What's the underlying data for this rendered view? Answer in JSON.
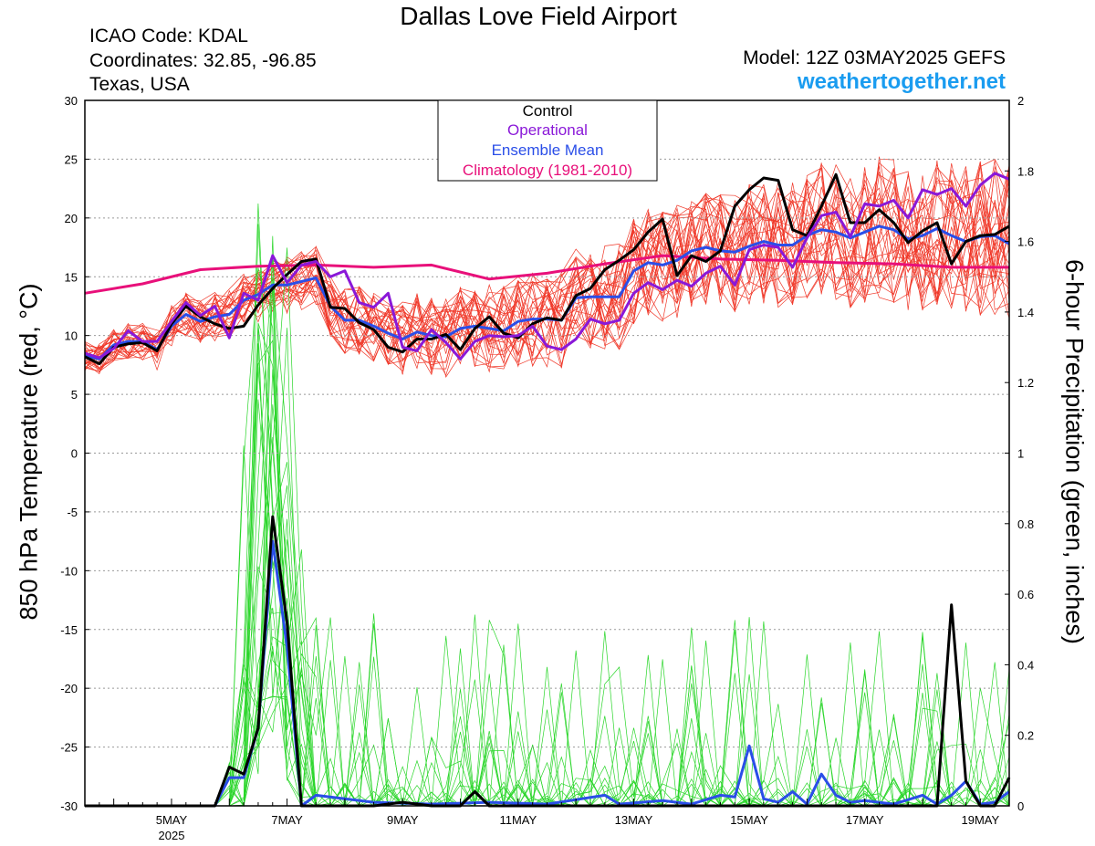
{
  "page": {
    "title": "Dallas Love Field Airport",
    "icao": "ICAO Code: KDAL",
    "coordinates": "Coordinates: 32.85, -96.85",
    "region": "Texas, USA",
    "model": "Model: 12Z 03MAY2025 GEFS",
    "brand": "weathertogether.net"
  },
  "chart_data": {
    "type": "line",
    "title": "Dallas Love Field Airport",
    "ylabel": "850 hPa Temperature (red, °C)",
    "y2label": "6-hour Precipitation (green, inches)",
    "ylim": [
      -30,
      30
    ],
    "y2lim": [
      0,
      2
    ],
    "yticks": [
      30,
      25,
      20,
      15,
      10,
      5,
      0,
      -5,
      -10,
      -15,
      -20,
      -25,
      -30
    ],
    "y2ticks": [
      "2",
      "1.8",
      "1.6",
      "1.4",
      "1.2",
      "1",
      "0.8",
      "0.6",
      "0.4",
      "0.2",
      "0"
    ],
    "x_unit": "days since 12Z 03MAY2025",
    "xlim": [
      0,
      16
    ],
    "xticks": [
      {
        "label": "5MAY",
        "sublabel": "2025",
        "x": 1.5
      },
      {
        "label": "7MAY",
        "sublabel": "",
        "x": 3.5
      },
      {
        "label": "9MAY",
        "sublabel": "",
        "x": 5.5
      },
      {
        "label": "11MAY",
        "sublabel": "",
        "x": 7.5
      },
      {
        "label": "13MAY",
        "sublabel": "",
        "x": 9.5
      },
      {
        "label": "15MAY",
        "sublabel": "",
        "x": 11.5
      },
      {
        "label": "17MAY",
        "sublabel": "",
        "x": 13.5
      },
      {
        "label": "19MAY",
        "sublabel": "",
        "x": 15.5
      }
    ],
    "grid": true,
    "legend": {
      "position": "top-center",
      "entries": [
        {
          "label": "Control",
          "color": "#000000"
        },
        {
          "label": "Operational",
          "color": "#8a18d8"
        },
        {
          "label": "Ensemble Mean",
          "color": "#2a4ee8"
        },
        {
          "label": "Climatology (1981-2010)",
          "color": "#e8107a"
        }
      ]
    },
    "colors": {
      "members_temp": "#f0392a",
      "members_precip": "#2ad62a",
      "control": "#000000",
      "operational": "#8a18d8",
      "mean": "#2a4ee8",
      "climatology": "#e8107a"
    },
    "series": [
      {
        "name": "Climatology (1981-2010)",
        "axis": "left",
        "points": [
          [
            0,
            13.6
          ],
          [
            1,
            14.4
          ],
          [
            2,
            15.6
          ],
          [
            3,
            15.9
          ],
          [
            4,
            16.0
          ],
          [
            5,
            15.8
          ],
          [
            6,
            16.0
          ],
          [
            7,
            14.8
          ],
          [
            8,
            15.3
          ],
          [
            9,
            16.1
          ],
          [
            10,
            16.8
          ],
          [
            11,
            16.5
          ],
          [
            12,
            16.4
          ],
          [
            13,
            16.2
          ],
          [
            14,
            16.1
          ],
          [
            15,
            15.8
          ],
          [
            16,
            15.8
          ]
        ]
      },
      {
        "name": "Ensemble Mean",
        "axis": "left",
        "points": [
          [
            0,
            8.3
          ],
          [
            0.25,
            8.0
          ],
          [
            0.5,
            9.2
          ],
          [
            0.75,
            9.5
          ],
          [
            1,
            9.5
          ],
          [
            1.25,
            8.8
          ],
          [
            1.5,
            10.8
          ],
          [
            1.75,
            11.8
          ],
          [
            2,
            11.2
          ],
          [
            2.25,
            11.6
          ],
          [
            2.5,
            11.8
          ],
          [
            2.75,
            13.0
          ],
          [
            3,
            13.5
          ],
          [
            3.25,
            14.3
          ],
          [
            3.5,
            14.3
          ],
          [
            3.75,
            14.6
          ],
          [
            4,
            14.9
          ],
          [
            4.25,
            12.5
          ],
          [
            4.5,
            11.3
          ],
          [
            4.75,
            11.3
          ],
          [
            5,
            10.8
          ],
          [
            5.25,
            10.2
          ],
          [
            5.5,
            9.7
          ],
          [
            5.75,
            10.3
          ],
          [
            6,
            10.0
          ],
          [
            6.25,
            9.9
          ],
          [
            6.5,
            10.6
          ],
          [
            6.75,
            10.8
          ],
          [
            7,
            10.6
          ],
          [
            7.25,
            10.4
          ],
          [
            7.5,
            11.2
          ],
          [
            7.75,
            11.4
          ],
          [
            8,
            11.4
          ],
          [
            8.25,
            11.3
          ],
          [
            8.5,
            13.2
          ],
          [
            8.75,
            13.3
          ],
          [
            9,
            13.3
          ],
          [
            9.25,
            13.3
          ],
          [
            9.5,
            15.5
          ],
          [
            9.75,
            16.2
          ],
          [
            10,
            16.0
          ],
          [
            10.25,
            16.4
          ],
          [
            10.5,
            17.2
          ],
          [
            10.75,
            17.5
          ],
          [
            11,
            17.2
          ],
          [
            11.25,
            17.1
          ],
          [
            11.5,
            17.6
          ],
          [
            11.75,
            18.0
          ],
          [
            12,
            17.7
          ],
          [
            12.25,
            17.7
          ],
          [
            12.5,
            18.5
          ],
          [
            12.75,
            19.0
          ],
          [
            13,
            18.8
          ],
          [
            13.25,
            18.3
          ],
          [
            13.5,
            18.8
          ],
          [
            13.75,
            19.3
          ],
          [
            14,
            19.0
          ],
          [
            14.25,
            18.2
          ],
          [
            14.5,
            18.5
          ],
          [
            14.75,
            19.1
          ],
          [
            15,
            18.5
          ],
          [
            15.25,
            18.0
          ],
          [
            15.5,
            18.4
          ],
          [
            15.75,
            18.5
          ],
          [
            16,
            17.8
          ]
        ]
      },
      {
        "name": "Control",
        "axis": "left",
        "points": [
          [
            0,
            8.2
          ],
          [
            0.25,
            7.6
          ],
          [
            0.5,
            9.0
          ],
          [
            0.75,
            9.3
          ],
          [
            1,
            9.4
          ],
          [
            1.25,
            8.7
          ],
          [
            1.5,
            11.0
          ],
          [
            1.75,
            12.5
          ],
          [
            2,
            11.6
          ],
          [
            2.25,
            11.0
          ],
          [
            2.5,
            10.6
          ],
          [
            2.75,
            10.8
          ],
          [
            3,
            12.6
          ],
          [
            3.25,
            14.0
          ],
          [
            3.5,
            15.2
          ],
          [
            3.75,
            16.3
          ],
          [
            4,
            16.5
          ],
          [
            4.25,
            12.4
          ],
          [
            4.5,
            12.3
          ],
          [
            4.75,
            11.1
          ],
          [
            5,
            10.5
          ],
          [
            5.25,
            9.0
          ],
          [
            5.5,
            8.6
          ],
          [
            5.75,
            9.7
          ],
          [
            6,
            9.7
          ],
          [
            6.25,
            10.1
          ],
          [
            6.5,
            8.8
          ],
          [
            6.75,
            10.6
          ],
          [
            7,
            11.6
          ],
          [
            7.25,
            10.2
          ],
          [
            7.5,
            9.8
          ],
          [
            7.75,
            11.0
          ],
          [
            8,
            11.5
          ],
          [
            8.25,
            11.3
          ],
          [
            8.5,
            13.4
          ],
          [
            8.75,
            14.0
          ],
          [
            9,
            15.6
          ],
          [
            9.25,
            16.4
          ],
          [
            9.5,
            17.3
          ],
          [
            9.75,
            18.8
          ],
          [
            10,
            19.9
          ],
          [
            10.25,
            15.1
          ],
          [
            10.5,
            16.8
          ],
          [
            10.75,
            16.3
          ],
          [
            11,
            17.2
          ],
          [
            11.25,
            21.0
          ],
          [
            11.5,
            22.4
          ],
          [
            11.75,
            23.4
          ],
          [
            12,
            23.2
          ],
          [
            12.25,
            19.0
          ],
          [
            12.5,
            18.5
          ],
          [
            12.75,
            21.0
          ],
          [
            13,
            23.7
          ],
          [
            13.25,
            19.6
          ],
          [
            13.5,
            19.6
          ],
          [
            13.75,
            20.7
          ],
          [
            14,
            19.6
          ],
          [
            14.25,
            17.9
          ],
          [
            14.5,
            18.9
          ],
          [
            14.75,
            19.6
          ],
          [
            15,
            16.1
          ],
          [
            15.25,
            18.0
          ],
          [
            15.5,
            18.5
          ],
          [
            15.75,
            18.6
          ],
          [
            16,
            19.3
          ]
        ]
      },
      {
        "name": "Operational",
        "axis": "left",
        "points": [
          [
            0,
            8.5
          ],
          [
            0.25,
            8.1
          ],
          [
            0.5,
            8.9
          ],
          [
            0.75,
            10.4
          ],
          [
            1,
            9.5
          ],
          [
            1.25,
            9.5
          ],
          [
            1.5,
            11.2
          ],
          [
            1.75,
            12.8
          ],
          [
            2,
            11.7
          ],
          [
            2.25,
            12.5
          ],
          [
            2.5,
            9.8
          ],
          [
            2.75,
            13.6
          ],
          [
            3,
            13.0
          ],
          [
            3.25,
            16.8
          ],
          [
            3.5,
            14.5
          ],
          [
            3.75,
            16.0
          ],
          [
            4,
            16.3
          ],
          [
            4.25,
            15.0
          ],
          [
            4.5,
            15.5
          ],
          [
            4.75,
            12.8
          ],
          [
            5,
            12.4
          ],
          [
            5.25,
            13.6
          ],
          [
            5.5,
            9.0
          ],
          [
            5.75,
            8.7
          ],
          [
            6,
            10.5
          ],
          [
            6.25,
            9.4
          ],
          [
            6.5,
            8.0
          ],
          [
            6.75,
            9.5
          ],
          [
            7,
            10.0
          ],
          [
            7.25,
            9.9
          ],
          [
            7.5,
            10.0
          ],
          [
            7.75,
            10.8
          ],
          [
            8,
            9.1
          ],
          [
            8.25,
            8.8
          ],
          [
            8.5,
            9.7
          ],
          [
            8.75,
            11.4
          ],
          [
            9,
            11.0
          ],
          [
            9.25,
            11.3
          ],
          [
            9.5,
            13.6
          ],
          [
            9.75,
            14.5
          ],
          [
            10,
            13.9
          ],
          [
            10.25,
            14.7
          ],
          [
            10.5,
            14.2
          ],
          [
            10.75,
            15.3
          ],
          [
            11,
            15.9
          ],
          [
            11.25,
            14.3
          ],
          [
            11.5,
            17.3
          ],
          [
            11.75,
            17.7
          ],
          [
            12,
            17.5
          ],
          [
            12.25,
            15.8
          ],
          [
            12.5,
            18.3
          ],
          [
            12.75,
            20.2
          ],
          [
            13,
            20.5
          ],
          [
            13.25,
            18.4
          ],
          [
            13.5,
            21.2
          ],
          [
            13.75,
            21.0
          ],
          [
            14,
            21.5
          ],
          [
            14.25,
            20.0
          ],
          [
            14.5,
            22.4
          ],
          [
            14.75,
            22.0
          ],
          [
            15,
            22.5
          ],
          [
            15.25,
            21.0
          ],
          [
            15.5,
            22.8
          ],
          [
            15.75,
            23.8
          ],
          [
            16,
            23.3
          ]
        ]
      },
      {
        "name": "Ensemble Mean precipitation",
        "axis": "right",
        "points": [
          [
            2.25,
            0
          ],
          [
            2.5,
            0.08
          ],
          [
            2.75,
            0.08
          ],
          [
            3,
            0.22
          ],
          [
            3.25,
            0.75
          ],
          [
            3.5,
            0.45
          ],
          [
            3.75,
            0
          ],
          [
            4,
            0.03
          ],
          [
            4.5,
            0.02
          ],
          [
            5,
            0.01
          ],
          [
            6,
            0.005
          ],
          [
            7,
            0.01
          ],
          [
            8,
            0.005
          ],
          [
            9,
            0.03
          ],
          [
            9.25,
            0.005
          ],
          [
            10,
            0.015
          ],
          [
            10.5,
            0.005
          ],
          [
            11,
            0.03
          ],
          [
            11.25,
            0.025
          ],
          [
            11.5,
            0.17
          ],
          [
            11.75,
            0.02
          ],
          [
            12,
            0.01
          ],
          [
            12.25,
            0.04
          ],
          [
            12.5,
            0.005
          ],
          [
            12.75,
            0.09
          ],
          [
            13,
            0.03
          ],
          [
            13.25,
            0.01
          ],
          [
            13.5,
            0.015
          ],
          [
            14,
            0.005
          ],
          [
            14.5,
            0.03
          ],
          [
            14.75,
            0.005
          ],
          [
            15,
            0.03
          ],
          [
            15.25,
            0.07
          ],
          [
            15.5,
            0.005
          ],
          [
            15.75,
            0.01
          ],
          [
            16,
            0.04
          ]
        ]
      },
      {
        "name": "Control precipitation",
        "axis": "right",
        "points": [
          [
            2.25,
            0
          ],
          [
            2.5,
            0.11
          ],
          [
            2.75,
            0.09
          ],
          [
            3,
            0.22
          ],
          [
            3.25,
            0.82
          ],
          [
            3.5,
            0.52
          ],
          [
            3.75,
            0
          ],
          [
            5,
            0
          ],
          [
            5.5,
            0.01
          ],
          [
            6,
            0
          ],
          [
            6.5,
            0
          ],
          [
            6.75,
            0.04
          ],
          [
            7,
            0
          ],
          [
            9,
            0
          ],
          [
            10,
            0
          ],
          [
            14.75,
            0
          ],
          [
            15,
            0.57
          ],
          [
            15.25,
            0.07
          ],
          [
            15.5,
            0
          ],
          [
            15.75,
            0
          ],
          [
            16,
            0.08
          ]
        ]
      }
    ]
  }
}
